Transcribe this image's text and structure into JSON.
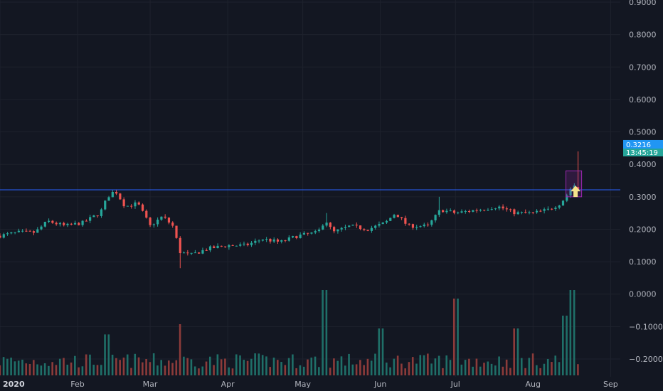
{
  "colors": {
    "background": "#131722",
    "grid": "#1e222d",
    "up": "#26a69a",
    "down": "#ef5350",
    "up_vol": "#1f6f68",
    "down_vol": "#8c3b3a",
    "hline": "#2962ff",
    "price_flag": "#2196f3",
    "timer_flag": "#26a69a",
    "highlight_box": "#9c27b0",
    "arrow": "#f5e38b"
  },
  "chart_data": {
    "type": "candlestick",
    "title": "",
    "y_axis": {
      "ticks": [
        "0.9000",
        "0.8000",
        "0.7000",
        "0.6000",
        "0.5000",
        "0.4000",
        "0.3000",
        "0.2000",
        "0.1000",
        "0.0000",
        "−0.1000",
        "−0.2000"
      ],
      "range": [
        -0.2,
        0.9
      ],
      "grid": true
    },
    "x_axis": {
      "labels": [
        "2020",
        "Feb",
        "Mar",
        "Apr",
        "May",
        "Jun",
        "Jul",
        "Aug",
        "Sep"
      ],
      "range": [
        "2020-01-01",
        "2020-09-10"
      ]
    },
    "horizontal_line": 0.3216,
    "price_label": "0.3216",
    "countdown_label": "13:45:19",
    "highlight": {
      "from": "2020-08-15",
      "to": "2020-08-19",
      "low": 0.3,
      "high": 0.38
    },
    "arrow_annotation": {
      "date": "2020-08-18",
      "value": 0.295,
      "direction": "up"
    },
    "price_series": [
      [
        "2020-01-01",
        0.18
      ],
      [
        "2020-01-08",
        0.19
      ],
      [
        "2020-01-15",
        0.19
      ],
      [
        "2020-01-20",
        0.225
      ],
      [
        "2020-01-27",
        0.21
      ],
      [
        "2020-02-03",
        0.22
      ],
      [
        "2020-02-10",
        0.25
      ],
      [
        "2020-02-13",
        0.3
      ],
      [
        "2020-02-16",
        0.32
      ],
      [
        "2020-02-20",
        0.27
      ],
      [
        "2020-02-25",
        0.28
      ],
      [
        "2020-03-01",
        0.21
      ],
      [
        "2020-03-06",
        0.24
      ],
      [
        "2020-03-10",
        0.21
      ],
      [
        "2020-03-13",
        0.13
      ],
      [
        "2020-03-17",
        0.12
      ],
      [
        "2020-03-24",
        0.14
      ],
      [
        "2020-04-01",
        0.15
      ],
      [
        "2020-04-08",
        0.15
      ],
      [
        "2020-04-15",
        0.17
      ],
      [
        "2020-04-22",
        0.16
      ],
      [
        "2020-04-29",
        0.18
      ],
      [
        "2020-05-07",
        0.19
      ],
      [
        "2020-05-10",
        0.23
      ],
      [
        "2020-05-13",
        0.19
      ],
      [
        "2020-05-20",
        0.21
      ],
      [
        "2020-05-27",
        0.2
      ],
      [
        "2020-06-03",
        0.22
      ],
      [
        "2020-06-07",
        0.25
      ],
      [
        "2020-06-12",
        0.21
      ],
      [
        "2020-06-20",
        0.21
      ],
      [
        "2020-06-25",
        0.26
      ],
      [
        "2020-07-01",
        0.25
      ],
      [
        "2020-07-10",
        0.26
      ],
      [
        "2020-07-18",
        0.27
      ],
      [
        "2020-07-25",
        0.25
      ],
      [
        "2020-08-01",
        0.25
      ],
      [
        "2020-08-07",
        0.26
      ],
      [
        "2020-08-12",
        0.28
      ],
      [
        "2020-08-15",
        0.31
      ],
      [
        "2020-08-17",
        0.34
      ],
      [
        "2020-08-19",
        0.3216
      ]
    ],
    "volume_series": [
      [
        "2020-02-13",
        0.48
      ],
      [
        "2020-03-13",
        0.6
      ],
      [
        "2020-05-10",
        1.0
      ],
      [
        "2020-06-01",
        0.55
      ],
      [
        "2020-07-01",
        0.9
      ],
      [
        "2020-07-25",
        0.55
      ],
      [
        "2020-08-14",
        0.7
      ],
      [
        "2020-08-17",
        1.0
      ]
    ]
  }
}
